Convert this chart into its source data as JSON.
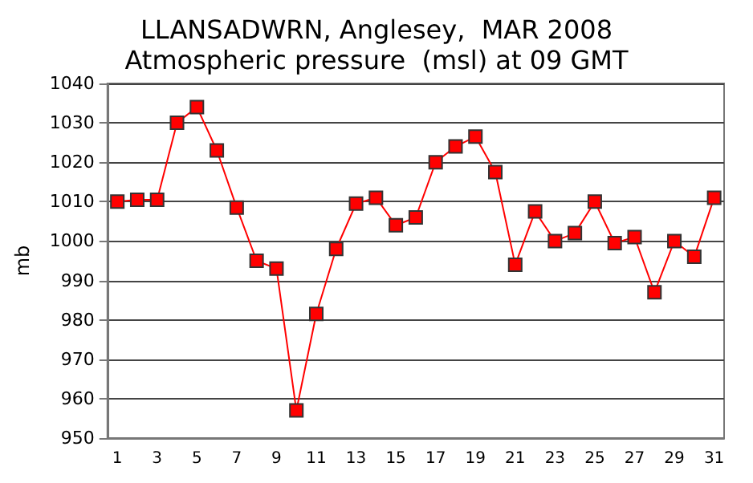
{
  "chart_data": {
    "type": "line",
    "title": "LLANSADWRN, Anglesey,  MAR 2008\nAtmospheric pressure  (msl) at 09 GMT",
    "ylabel": "mb",
    "x": [
      1,
      2,
      3,
      4,
      5,
      6,
      7,
      8,
      9,
      10,
      11,
      12,
      13,
      14,
      15,
      16,
      17,
      18,
      19,
      20,
      21,
      22,
      23,
      24,
      25,
      26,
      27,
      28,
      29,
      30,
      31
    ],
    "xlim": [
      0.5,
      31.5
    ],
    "xticks": [
      1,
      3,
      5,
      7,
      9,
      11,
      13,
      15,
      17,
      19,
      21,
      23,
      25,
      27,
      29,
      31
    ],
    "series": [
      {
        "color": "#ff0000",
        "values": [
          1010,
          1010.5,
          1010.5,
          1030,
          1034,
          1023,
          1008.5,
          995,
          993,
          957,
          981.5,
          998,
          1009.5,
          1011,
          1004,
          1006,
          1020,
          1024,
          1026.5,
          1017.5,
          994,
          1007.5,
          1000,
          1002,
          1010,
          999.5,
          1001,
          987,
          1000,
          996,
          1011
        ]
      }
    ],
    "ylim": [
      950,
      1040
    ],
    "yticks": [
      950,
      960,
      970,
      980,
      990,
      1000,
      1010,
      1020,
      1030,
      1040
    ],
    "grid": "y",
    "marker": "square",
    "line_style": "solid"
  }
}
